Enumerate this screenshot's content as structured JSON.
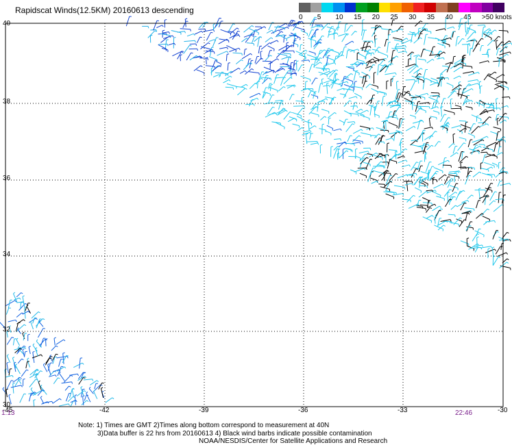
{
  "title": "Rapidscat Winds(12.5KM) 20160613 descending",
  "legend": {
    "ticks": [
      "0",
      "5",
      "10",
      "15",
      "20",
      "25",
      "30",
      "35",
      "40",
      "45",
      ">50 knots"
    ],
    "colors": [
      "#606060",
      "#a0a0a0",
      "#00d8f0",
      "#0090f0",
      "#0030d0",
      "#00a020",
      "#008000",
      "#ffe000",
      "#ffa000",
      "#f06000",
      "#f02020",
      "#d00000",
      "#c07050",
      "#804020",
      "#ff00ff",
      "#c000c0",
      "#8000a0",
      "#400060"
    ]
  },
  "y_axis": [
    "40",
    "38",
    "36",
    "34",
    "32",
    "30"
  ],
  "x_axis": [
    "-45",
    "-42",
    "-39",
    "-36",
    "-33",
    "-30"
  ],
  "times": {
    "left": "1:13",
    "right": "22:46"
  },
  "notes": [
    "Note: 1) Times are GMT 2)Times along bottom correspond to measurement at 40N",
    "3)Data buffer is 22 hrs from 20160613 4) Black wind barbs indicate possible contamination",
    "NOAA/NESDIS/Center for Satellite Applications and Research"
  ]
}
